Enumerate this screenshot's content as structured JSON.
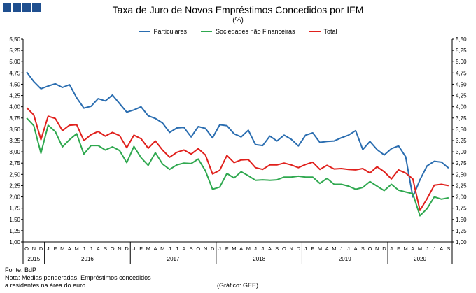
{
  "page": {
    "title": "Taxa de Juro de Novos Empréstimos Concedidos por IFM",
    "subtitle": "(%)",
    "source": "Fonte: BdP",
    "note_line1": "Nota: Médias ponderadas.  Empréstimos concedidos",
    "note_line2": "a residentes na área do euro.",
    "credit": "(Gráfico: GEE)",
    "logo_icon": "bar-logo-icon"
  },
  "chart_data": {
    "type": "line",
    "title": "Taxa de Juro de Novos Empréstimos Concedidos por IFM",
    "subtitle": "(%)",
    "ylim": [
      1.0,
      5.5
    ],
    "yticks": [
      "1,00",
      "1,25",
      "1,50",
      "1,75",
      "2,00",
      "2,25",
      "2,50",
      "2,75",
      "3,00",
      "3,25",
      "3,50",
      "3,75",
      "4,00",
      "4,25",
      "4,50",
      "4,75",
      "5,00",
      "5,25",
      "5,50"
    ],
    "y_axes": "both",
    "grid": false,
    "legend": "top-center",
    "month_labels": [
      "O",
      "N",
      "D",
      "J",
      "F",
      "M",
      "A",
      "M",
      "J",
      "J",
      "A",
      "S",
      "O",
      "N",
      "D",
      "J",
      "F",
      "M",
      "A",
      "M",
      "J",
      "J",
      "A",
      "S",
      "O",
      "N",
      "D",
      "J",
      "F",
      "M",
      "A",
      "M",
      "J",
      "J",
      "A",
      "S",
      "O",
      "N",
      "D",
      "J",
      "F",
      "M",
      "A",
      "M",
      "J",
      "J",
      "A",
      "S",
      "O",
      "N",
      "D",
      "J",
      "F",
      "M",
      "A",
      "M",
      "J",
      "J",
      "A",
      "S"
    ],
    "year_labels": [
      {
        "label": "2015",
        "start": 0,
        "end": 2
      },
      {
        "label": "2016",
        "start": 3,
        "end": 14
      },
      {
        "label": "2017",
        "start": 15,
        "end": 26
      },
      {
        "label": "2018",
        "start": 27,
        "end": 38
      },
      {
        "label": "2019",
        "start": 39,
        "end": 50
      },
      {
        "label": "2020",
        "start": 51,
        "end": 59
      }
    ],
    "series": [
      {
        "name": "Particulares",
        "color": "#2a6db0",
        "values": [
          4.77,
          4.56,
          4.4,
          4.46,
          4.51,
          4.43,
          4.49,
          4.2,
          3.97,
          4.01,
          4.18,
          4.13,
          4.26,
          4.07,
          3.88,
          3.93,
          4.0,
          3.8,
          3.74,
          3.64,
          3.43,
          3.53,
          3.54,
          3.33,
          3.56,
          3.52,
          3.31,
          3.6,
          3.58,
          3.4,
          3.33,
          3.48,
          3.16,
          3.14,
          3.35,
          3.24,
          3.37,
          3.28,
          3.13,
          3.37,
          3.42,
          3.21,
          3.23,
          3.24,
          3.31,
          3.37,
          3.47,
          3.05,
          3.23,
          3.05,
          2.93,
          3.07,
          3.13,
          2.89,
          2.0,
          2.38,
          2.69,
          2.79,
          2.77,
          2.64
        ]
      },
      {
        "name": "Sociedades não Financeiras",
        "color": "#2fa84f",
        "values": [
          3.75,
          3.58,
          2.97,
          3.59,
          3.45,
          3.11,
          3.27,
          3.4,
          2.95,
          3.14,
          3.14,
          3.04,
          3.11,
          3.03,
          2.76,
          3.12,
          2.87,
          2.7,
          2.98,
          2.73,
          2.61,
          2.71,
          2.75,
          2.74,
          2.84,
          2.58,
          2.17,
          2.22,
          2.52,
          2.42,
          2.56,
          2.47,
          2.37,
          2.38,
          2.37,
          2.38,
          2.44,
          2.44,
          2.46,
          2.44,
          2.44,
          2.3,
          2.41,
          2.28,
          2.28,
          2.24,
          2.17,
          2.21,
          2.34,
          2.24,
          2.14,
          2.28,
          2.15,
          2.11,
          2.07,
          1.58,
          1.74,
          2.0,
          1.95,
          1.98
        ]
      },
      {
        "name": "Total",
        "color": "#e0201c",
        "values": [
          3.98,
          3.82,
          3.27,
          3.79,
          3.74,
          3.47,
          3.59,
          3.6,
          3.25,
          3.38,
          3.45,
          3.35,
          3.43,
          3.36,
          3.09,
          3.37,
          3.29,
          3.08,
          3.24,
          3.04,
          2.88,
          2.99,
          3.04,
          2.95,
          3.07,
          2.93,
          2.51,
          2.59,
          2.92,
          2.76,
          2.82,
          2.83,
          2.65,
          2.61,
          2.71,
          2.71,
          2.75,
          2.71,
          2.65,
          2.72,
          2.77,
          2.61,
          2.7,
          2.62,
          2.63,
          2.61,
          2.6,
          2.63,
          2.53,
          2.67,
          2.56,
          2.4,
          2.6,
          2.53,
          2.4,
          1.7,
          1.96,
          2.26,
          2.28,
          2.25
        ]
      }
    ]
  }
}
